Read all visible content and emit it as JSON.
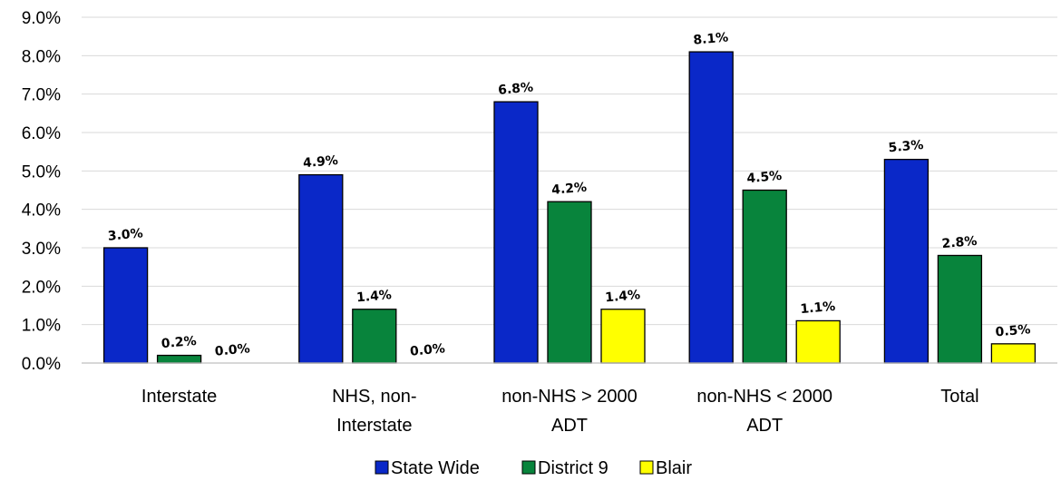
{
  "chart_data": {
    "type": "bar",
    "categories": [
      [
        "Interstate"
      ],
      [
        "NHS, non-",
        "Interstate"
      ],
      [
        "non-NHS > 2000",
        "ADT"
      ],
      [
        "non-NHS < 2000",
        "ADT"
      ],
      [
        "Total"
      ]
    ],
    "series": [
      {
        "name": "State Wide",
        "color": "#0a28c8",
        "values": [
          3.0,
          4.9,
          6.8,
          8.1,
          5.3
        ],
        "labels": [
          "3.0%",
          "4.9%",
          "6.8%",
          "8.1%",
          "5.3%"
        ]
      },
      {
        "name": "District 9",
        "color": "#08843c",
        "values": [
          0.2,
          1.4,
          4.2,
          4.5,
          2.8
        ],
        "labels": [
          "0.2%",
          "1.4%",
          "4.2%",
          "4.5%",
          "2.8%"
        ]
      },
      {
        "name": "Blair",
        "color": "#ffff00",
        "values": [
          0.0,
          0.0,
          1.4,
          1.1,
          0.5
        ],
        "labels": [
          "0.0%",
          "0.0%",
          "1.4%",
          "1.1%",
          "0.5%"
        ]
      }
    ],
    "yticks": [
      "0.0%",
      "1.0%",
      "2.0%",
      "3.0%",
      "4.0%",
      "5.0%",
      "6.0%",
      "7.0%",
      "8.0%",
      "9.0%"
    ],
    "ylim": [
      0,
      9
    ],
    "title": "",
    "xlabel": "",
    "ylabel": "",
    "grid": true,
    "legend_position": "bottom-center"
  }
}
